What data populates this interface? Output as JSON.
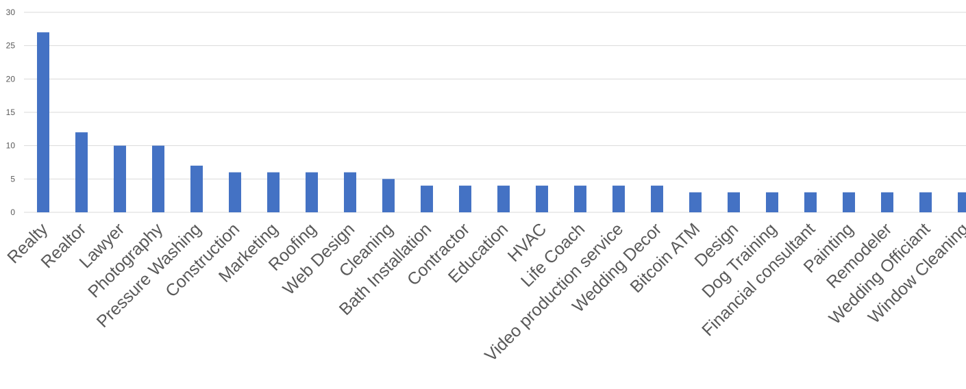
{
  "chart_data": {
    "type": "bar",
    "categories": [
      "Realty",
      "Realtor",
      "Lawyer",
      "Photography",
      "Pressure Washing",
      "Construction",
      "Marketing",
      "Roofing",
      "Web Design",
      "Cleaning",
      "Bath Installation",
      "Contractor",
      "Education",
      "HVAC",
      "Life Coach",
      "Video production service",
      "Wedding Decor",
      "Bitcoin ATM",
      "Design",
      "Dog Training",
      "Financial consultant",
      "Painting",
      "Remodeler",
      "Wedding Officiant",
      "Window Cleaning"
    ],
    "values": [
      27,
      12,
      10,
      10,
      7,
      6,
      6,
      6,
      6,
      5,
      4,
      4,
      4,
      4,
      4,
      4,
      4,
      3,
      3,
      3,
      3,
      3,
      3,
      3,
      3
    ],
    "title": "",
    "xlabel": "",
    "ylabel": "",
    "ylim": [
      0,
      30
    ],
    "yticks": [
      0,
      5,
      10,
      15,
      20,
      25,
      30
    ],
    "grid": true,
    "legend": "none",
    "bar_color": "#4472c4"
  }
}
